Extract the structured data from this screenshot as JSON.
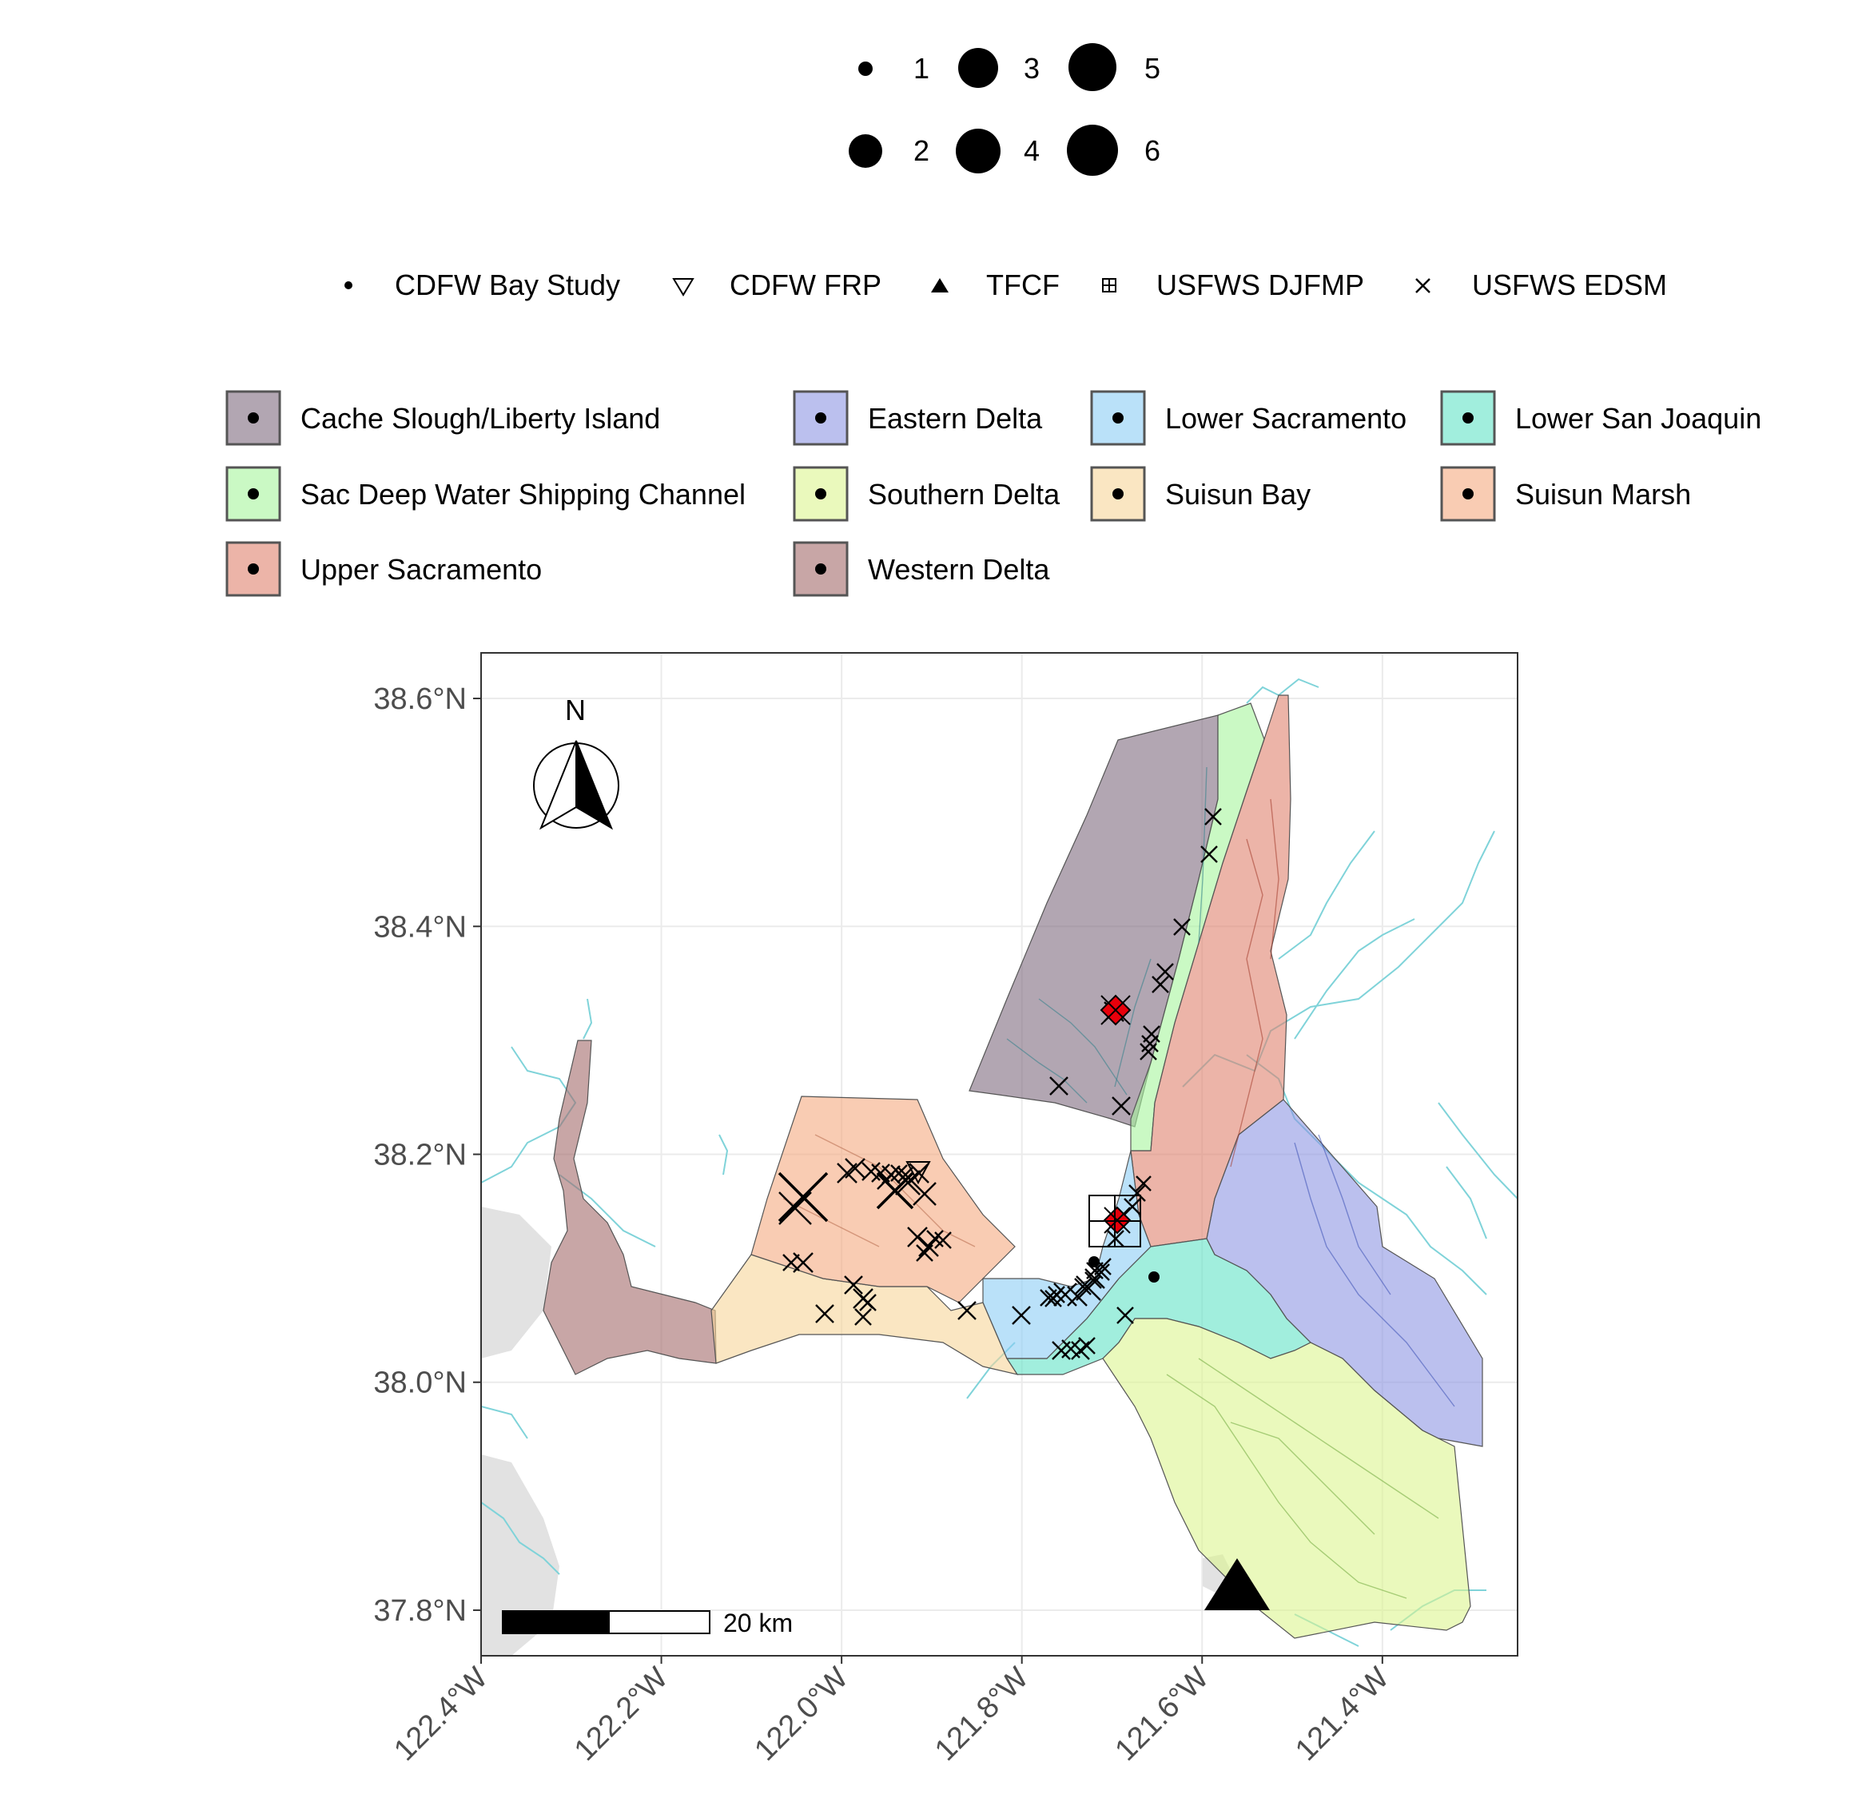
{
  "size_legend": {
    "items": [
      {
        "label": "1",
        "value": 1
      },
      {
        "label": "2",
        "value": 2
      },
      {
        "label": "3",
        "value": 3
      },
      {
        "label": "4",
        "value": 4
      },
      {
        "label": "5",
        "value": 5
      },
      {
        "label": "6",
        "value": 6
      }
    ]
  },
  "shape_legend": {
    "items": [
      {
        "label": "CDFW Bay Study",
        "shape": "small-dot"
      },
      {
        "label": "CDFW FRP",
        "shape": "open-down-triangle"
      },
      {
        "label": "TFCF",
        "shape": "filled-up-triangle"
      },
      {
        "label": "USFWS DJFMP",
        "shape": "boxed-plus"
      },
      {
        "label": "USFWS EDSM",
        "shape": "x-cross"
      }
    ]
  },
  "region_legend": {
    "items": [
      {
        "label": "Cache Slough/Liberty Island",
        "color": "#7f6b7e"
      },
      {
        "label": "Eastern Delta",
        "color": "#8d96e2"
      },
      {
        "label": "Lower Sacramento",
        "color": "#8ccdf5"
      },
      {
        "label": "Lower San Joaquin",
        "color": "#63e3c7"
      },
      {
        "label": "Sac Deep Water Shipping Channel",
        "color": "#a6f59c"
      },
      {
        "label": "Southern Delta",
        "color": "#dcf590"
      },
      {
        "label": "Suisun Bay",
        "color": "#f7d59a"
      },
      {
        "label": "Suisun Marsh",
        "color": "#f5aa80"
      },
      {
        "label": "Upper Sacramento",
        "color": "#e0826e"
      },
      {
        "label": "Western Delta",
        "color": "#a36a6a"
      }
    ]
  },
  "map": {
    "north_label": "N",
    "scale_bar_label": "20 km",
    "lon_range": [
      -122.4,
      -121.25
    ],
    "lat_range": [
      37.76,
      38.64
    ],
    "y_ticks": [
      {
        "label": "38.6°N",
        "value": 38.6
      },
      {
        "label": "38.4°N",
        "value": 38.4
      },
      {
        "label": "38.2°N",
        "value": 38.2
      },
      {
        "label": "38.0°N",
        "value": 38.0
      },
      {
        "label": "37.8°N",
        "value": 37.8
      }
    ],
    "x_ticks": [
      {
        "label": "122.4°W",
        "value": -122.4
      },
      {
        "label": "122.2°W",
        "value": -122.2
      },
      {
        "label": "122.0°W",
        "value": -122.0
      },
      {
        "label": "121.8°W",
        "value": -121.8
      },
      {
        "label": "121.6°W",
        "value": -121.6
      },
      {
        "label": "121.4°W",
        "value": -121.4
      }
    ],
    "colors": {
      "water_line": "#7fd3d9",
      "land": "#e2e2e2",
      "highlight": "#e8000b",
      "grid": "#ebebeb",
      "panel_border": "#333333"
    }
  }
}
